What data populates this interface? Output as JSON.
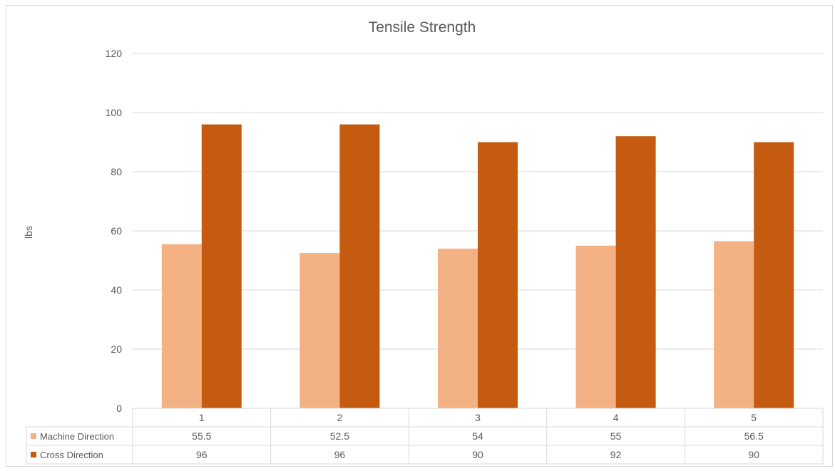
{
  "chart_data": {
    "type": "bar",
    "title": "Tensile Strength",
    "xlabel": "",
    "ylabel": "lbs",
    "categories": [
      "1",
      "2",
      "3",
      "4",
      "5"
    ],
    "series": [
      {
        "name": "Machine Direction",
        "values": [
          55.5,
          52.5,
          54,
          55,
          56.5
        ],
        "color": "#f4b183"
      },
      {
        "name": "Cross Direction",
        "values": [
          96,
          96,
          90,
          92,
          90
        ],
        "color": "#c55a11"
      }
    ],
    "ylim": [
      0,
      120
    ],
    "yticks": [
      "0",
      "20",
      "40",
      "60",
      "80",
      "100",
      "120"
    ],
    "grid": true,
    "legend": "data-table-bottom",
    "colors": {
      "gridline": "#d9d9d9",
      "text": "#595959",
      "table_border": "#d9d9d9"
    }
  }
}
